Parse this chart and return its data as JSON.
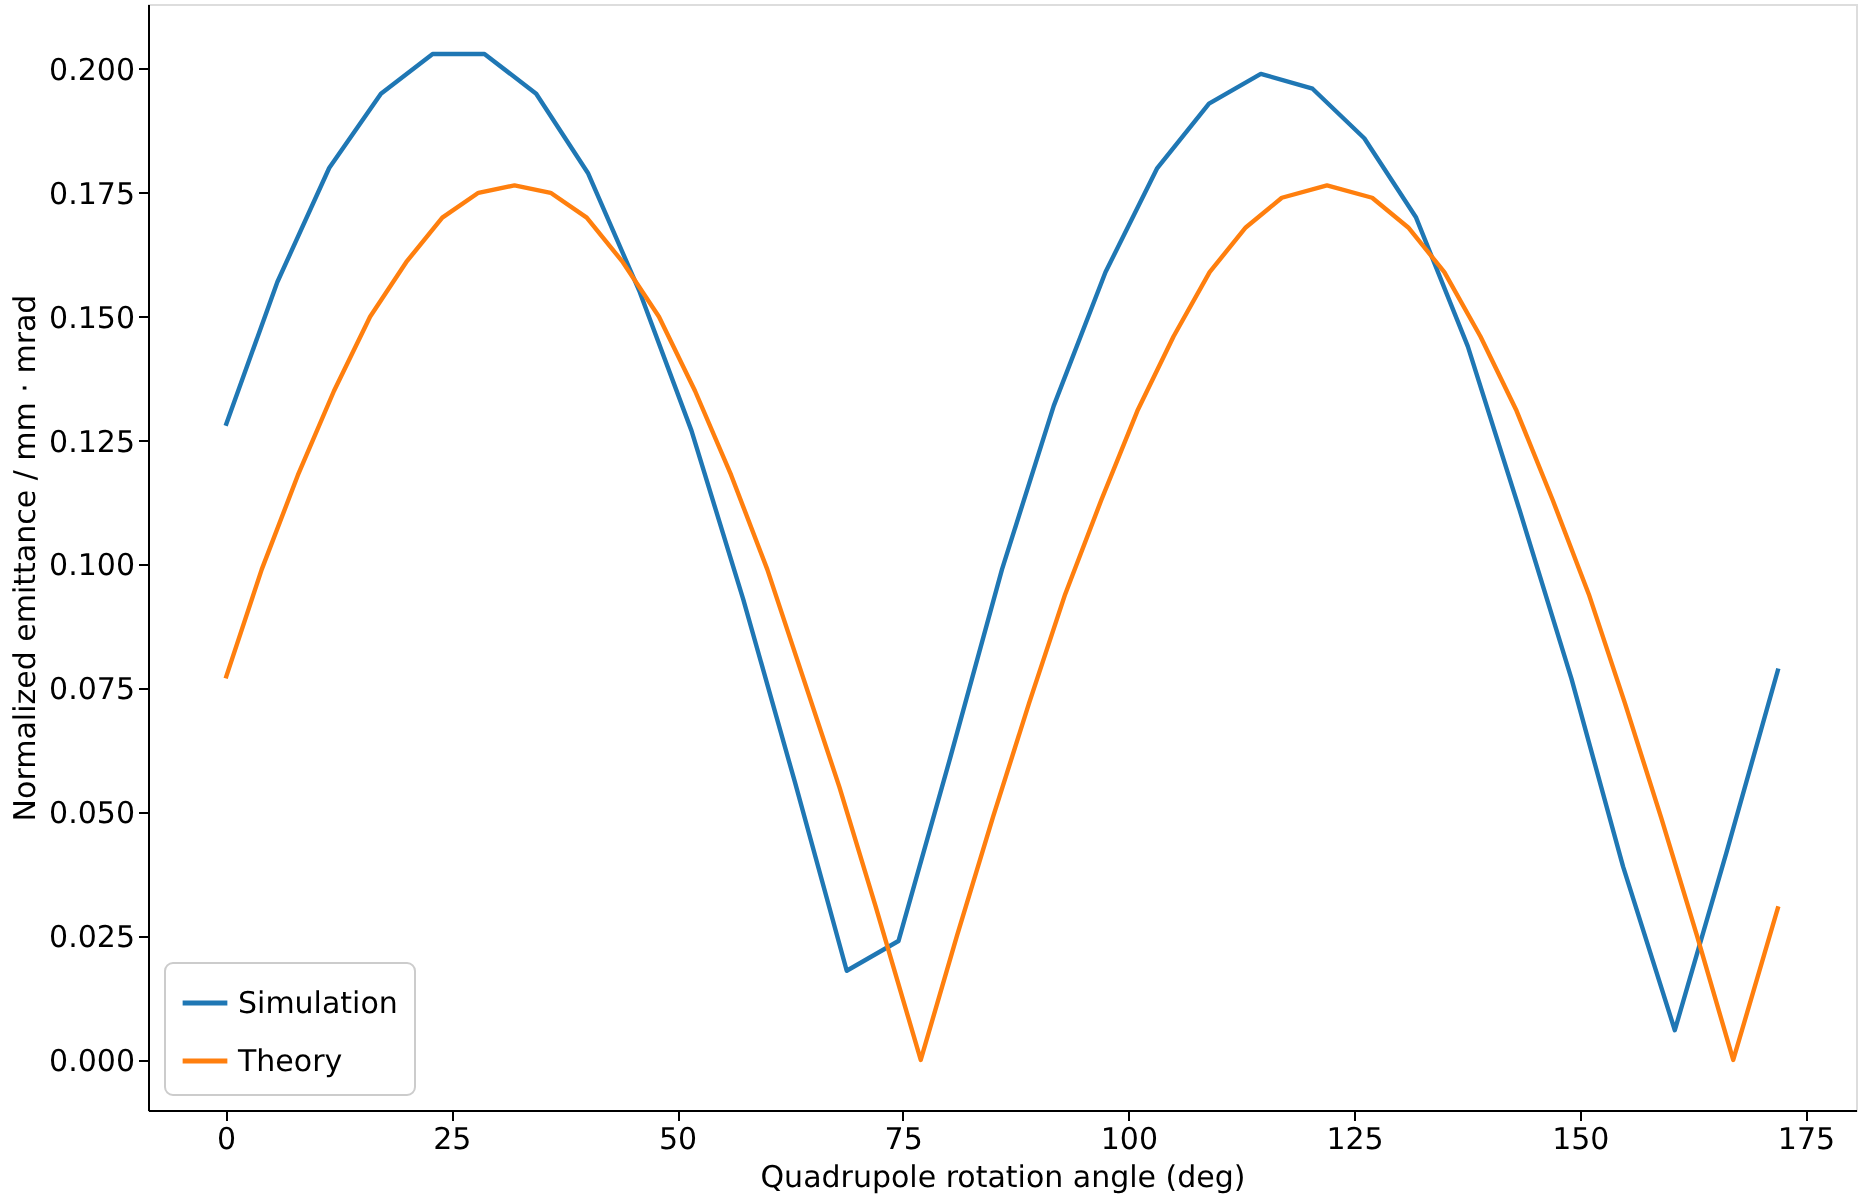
{
  "chart_data": {
    "type": "line",
    "xlabel": "Quadrupole rotation angle (deg)",
    "ylabel": "Normalized emittance / mm · mrad",
    "xlim": [
      -8.6,
      180.6
    ],
    "xticks": [
      0,
      25,
      50,
      75,
      100,
      125,
      150,
      175
    ],
    "ylim": [
      -0.0101,
      0.2131
    ],
    "yticks": [
      {
        "value": 0,
        "label": "0.000"
      },
      {
        "value": 0.025,
        "label": "0.025"
      },
      {
        "value": 0.05,
        "label": "0.050"
      },
      {
        "value": 0.075,
        "label": "0.075"
      },
      {
        "value": 0.1,
        "label": "0.100"
      },
      {
        "value": 0.125,
        "label": "0.125"
      },
      {
        "value": 0.15,
        "label": "0.150"
      },
      {
        "value": 0.175,
        "label": "0.175"
      },
      {
        "value": 0.2,
        "label": "0.200"
      }
    ],
    "grid": false,
    "legend": "bottom left",
    "marker": "none",
    "line_style": "solid",
    "series": [
      {
        "name": "Simulation",
        "color": "#1f77b4",
        "x": [
          0,
          5.73,
          11.47,
          17.2,
          22.93,
          28.67,
          34.4,
          40.13,
          45.87,
          51.6,
          57.33,
          63.07,
          68.8,
          74.53,
          80.27,
          86,
          91.73,
          97.47,
          103.2,
          108.93,
          114.67,
          120.4,
          126.13,
          131.87,
          137.6,
          143.33,
          149.07,
          154.8,
          160.53,
          166.27,
          172
        ],
        "values": [
          0.128,
          0.157,
          0.18,
          0.195,
          0.203,
          0.203,
          0.195,
          0.179,
          0.155,
          0.127,
          0.093,
          0.056,
          0.018,
          0.024,
          0.061,
          0.099,
          0.132,
          0.159,
          0.18,
          0.193,
          0.199,
          0.196,
          0.186,
          0.17,
          0.144,
          0.111,
          0.077,
          0.039,
          0.006,
          0.042,
          0.079
        ]
      },
      {
        "name": "Theory",
        "color": "#ff7f0e",
        "x": [
          0,
          4,
          8,
          12,
          16,
          20,
          24,
          28,
          32,
          36,
          40,
          44,
          48,
          52,
          56,
          60,
          64,
          68,
          72,
          77,
          81,
          85,
          89,
          93,
          97,
          101,
          105,
          109,
          113,
          117,
          122,
          127,
          131,
          135,
          139,
          143,
          147,
          151,
          155,
          159,
          163,
          167,
          172
        ],
        "values": [
          0.077,
          0.099,
          0.118,
          0.135,
          0.15,
          0.161,
          0.17,
          0.175,
          0.1765,
          0.175,
          0.17,
          0.161,
          0.15,
          0.135,
          0.118,
          0.099,
          0.077,
          0.055,
          0.031,
          0,
          0.025,
          0.049,
          0.072,
          0.094,
          0.113,
          0.131,
          0.146,
          0.159,
          0.168,
          0.174,
          0.1765,
          0.174,
          0.168,
          0.159,
          0.146,
          0.131,
          0.113,
          0.094,
          0.072,
          0.049,
          0.025,
          0,
          0.031
        ]
      }
    ]
  }
}
